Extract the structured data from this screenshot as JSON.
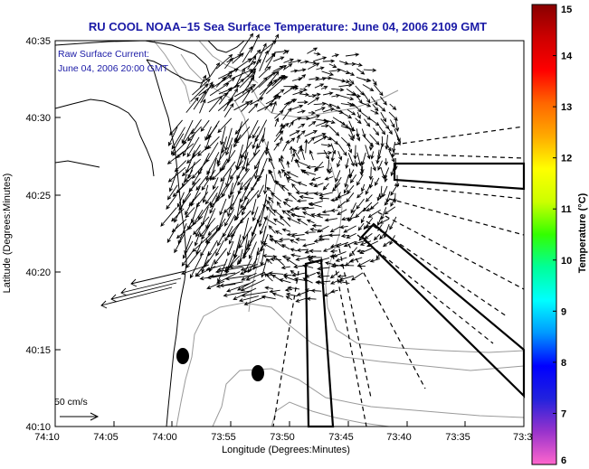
{
  "chart_data": {
    "type": "map",
    "title": "RU COOL  NOAA–15  Sea Surface Temperature:  June 04, 2006 2109 GMT",
    "annotation_lines": [
      "Raw Surface Current:",
      "June 04, 2006 20:00 GMT"
    ],
    "xlabel": "Longitude (Degrees:Minutes)",
    "ylabel": "Latitude (Degrees:Minutes)",
    "x_ticks": [
      "74:10",
      "74:05",
      "74:00",
      "73:55",
      "73:50",
      "73:45",
      "73:40",
      "73:35",
      "73:3"
    ],
    "y_ticks": [
      "40:35",
      "40:30",
      "40:25",
      "40:20",
      "40:15",
      "40:10"
    ],
    "x_range_deg_west": [
      74.1667,
      73.5
    ],
    "y_range_deg_north": [
      40.1667,
      40.5833
    ],
    "colorbar": {
      "label": "Temperature (°C)",
      "ticks": [
        "15",
        "14",
        "13",
        "12",
        "11",
        "10",
        "9",
        "8",
        "7",
        "6"
      ],
      "range": [
        6,
        15
      ],
      "colors": [
        "#ff66cc",
        "#9933cc",
        "#2222dd",
        "#0000ff",
        "#0099ff",
        "#00ffff",
        "#00ff99",
        "#33ff00",
        "#ccff00",
        "#ffff00",
        "#ffaa00",
        "#ff6600",
        "#ff0000",
        "#cc0000",
        "#880000"
      ]
    },
    "scale_label": "50 cm/s",
    "grid": false
  }
}
